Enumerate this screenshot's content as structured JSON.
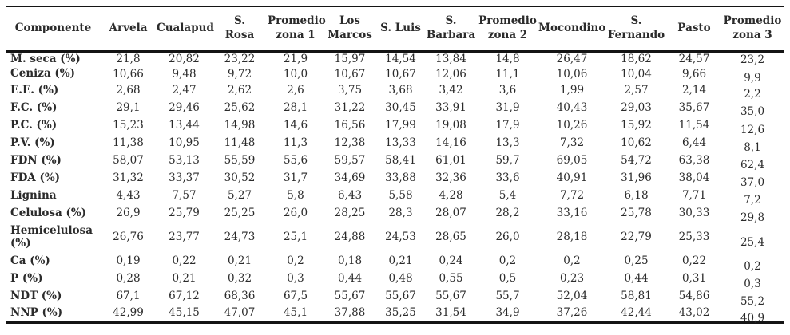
{
  "colors": {
    "text": "#2b2b2b",
    "rule": "#141414",
    "background": "#ffffff"
  },
  "table": {
    "columns": [
      "Componente",
      "Arvela",
      "Cualapud",
      "S.\nRosa",
      "Promedio\nzona 1",
      "Los\nMarcos",
      "S. Luis",
      "S.\nBarbara",
      "Promedio\nzona 2",
      "Mocondino",
      "S.\nFernando",
      "Pasto",
      "Promedio\nzona 3"
    ],
    "rows": [
      {
        "label": "M. seca (%)",
        "values": [
          "21,8",
          "20,82",
          "23,22",
          "21,9",
          "15,97",
          "14,54",
          "13,84",
          "14,8",
          "26,47",
          "18,62",
          "24,57",
          "23,2"
        ]
      },
      {
        "label": "Ceniza (%)",
        "values": [
          "10,66",
          "9,48",
          "9,72",
          "10,0",
          "10,67",
          "10,67",
          "12,06",
          "11,1",
          "10,06",
          "10,04",
          "9,66",
          "9,9"
        ]
      },
      {
        "label": "E.E. (%)",
        "values": [
          "2,68",
          "2,47",
          "2,62",
          "2,6",
          "3,75",
          "3,68",
          "3,42",
          "3,6",
          "1,99",
          "2,57",
          "2,14",
          "2,2"
        ]
      },
      {
        "label": "F.C. (%)",
        "values": [
          "29,1",
          "29,46",
          "25,62",
          "28,1",
          "31,22",
          "30,45",
          "33,91",
          "31,9",
          "40,43",
          "29,03",
          "35,67",
          "35,0"
        ]
      },
      {
        "label": "P.C. (%)",
        "values": [
          "15,23",
          "13,44",
          "14,98",
          "14,6",
          "16,56",
          "17,99",
          "19,08",
          "17,9",
          "10,26",
          "15,92",
          "11,54",
          "12,6"
        ]
      },
      {
        "label": "P.V. (%)",
        "values": [
          "11,38",
          "10,95",
          "11,48",
          "11,3",
          "12,38",
          "13,33",
          "14,16",
          "13,3",
          "7,32",
          "10,62",
          "6,44",
          "8,1"
        ]
      },
      {
        "label": "FDN (%)",
        "values": [
          "58,07",
          "53,13",
          "55,59",
          "55,6",
          "59,57",
          "58,41",
          "61,01",
          "59,7",
          "69,05",
          "54,72",
          "63,38",
          "62,4"
        ]
      },
      {
        "label": "FDA (%)",
        "values": [
          "31,32",
          "33,37",
          "30,52",
          "31,7",
          "34,69",
          "33,88",
          "32,36",
          "33,6",
          "40,91",
          "31,96",
          "38,04",
          "37,0"
        ]
      },
      {
        "label": "Lignina",
        "values": [
          "4,43",
          "7,57",
          "5,27",
          "5,8",
          "6,43",
          "5,58",
          "4,28",
          "5,4",
          "7,72",
          "6,18",
          "7,71",
          "7,2"
        ]
      },
      {
        "label": "Celulosa (%)",
        "values": [
          "26,9",
          "25,79",
          "25,25",
          "26,0",
          "28,25",
          "28,3",
          "28,07",
          "28,2",
          "33,16",
          "25,78",
          "30,33",
          "29,8"
        ]
      },
      {
        "label": "Hemicelulosa\n(%)",
        "values": [
          "26,76",
          "23,77",
          "24,73",
          "25,1",
          "24,88",
          "24,53",
          "28,65",
          "26,0",
          "28,18",
          "22,79",
          "25,33",
          "25,4"
        ]
      },
      {
        "label": "Ca (%)",
        "values": [
          "0,19",
          "0,22",
          "0,21",
          "0,2",
          "0,18",
          "0,21",
          "0,24",
          "0,2",
          "0,2",
          "0,25",
          "0,22",
          "0,2"
        ]
      },
      {
        "label": "P (%)",
        "values": [
          "0,28",
          "0,21",
          "0,32",
          "0,3",
          "0,44",
          "0,48",
          "0,55",
          "0,5",
          "0,23",
          "0,44",
          "0,31",
          "0,3"
        ]
      },
      {
        "label": "NDT (%)",
        "values": [
          "67,1",
          "67,12",
          "68,36",
          "67,5",
          "55,67",
          "55,67",
          "55,67",
          "55,7",
          "52,04",
          "58,81",
          "54,86",
          "55,2"
        ]
      },
      {
        "label": "NNP (%)",
        "values": [
          "42,99",
          "45,15",
          "47,07",
          "45,1",
          "37,88",
          "35,25",
          "31,54",
          "34,9",
          "37,26",
          "42,44",
          "43,02",
          "40,9"
        ]
      }
    ]
  }
}
